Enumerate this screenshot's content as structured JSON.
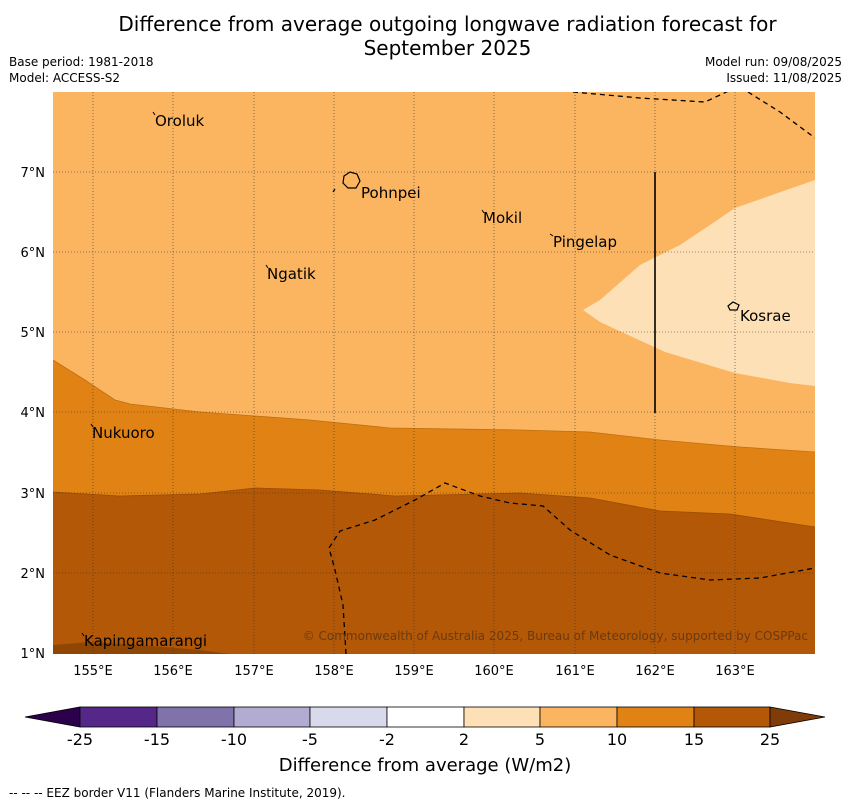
{
  "title_line1": "Difference from average outgoing longwave radiation forecast for",
  "title_line2": "September 2025",
  "meta": {
    "base_period": "Base period: 1981-2018",
    "model": "Model: ACCESS-S2",
    "model_run": "Model run: 09/08/2025",
    "issued": "Issued: 11/08/2025"
  },
  "map": {
    "lon_labels": [
      "155°E",
      "156°E",
      "157°E",
      "158°E",
      "159°E",
      "160°E",
      "161°E",
      "162°E",
      "163°E"
    ],
    "lat_labels": [
      "7°N",
      "6°N",
      "5°N",
      "4°N",
      "3°N",
      "2°N",
      "1°N"
    ],
    "places": [
      "Oroluk",
      "Pohnpei",
      "Mokil",
      "Pingelap",
      "Ngatik",
      "Kosrae",
      "Nukuoro",
      "Kapingamarangi"
    ],
    "copyright": "© Commonwealth of Australia 2025, Bureau of Meteorology, supported by COSPPac",
    "colors": {
      "c5_10": "#fbb561",
      "c2_5": "#fee0b6",
      "c10_15": "#e08214",
      "c15_25": "#b35806"
    }
  },
  "colorbar": {
    "ticks": [
      "-25",
      "-15",
      "-10",
      "-5",
      "-2",
      "2",
      "5",
      "10",
      "15",
      "25"
    ],
    "colors": [
      "#2d004b",
      "#542788",
      "#8073ac",
      "#b2abd2",
      "#d8daeb",
      "#ffffff",
      "#fee0b6",
      "#fbb561",
      "#e08214",
      "#b35806",
      "#7f3b08"
    ],
    "title": "Difference from average (W/m2)"
  },
  "footnote": "-- -- -- EEZ border V11 (Flanders Marine Institute, 2019)."
}
